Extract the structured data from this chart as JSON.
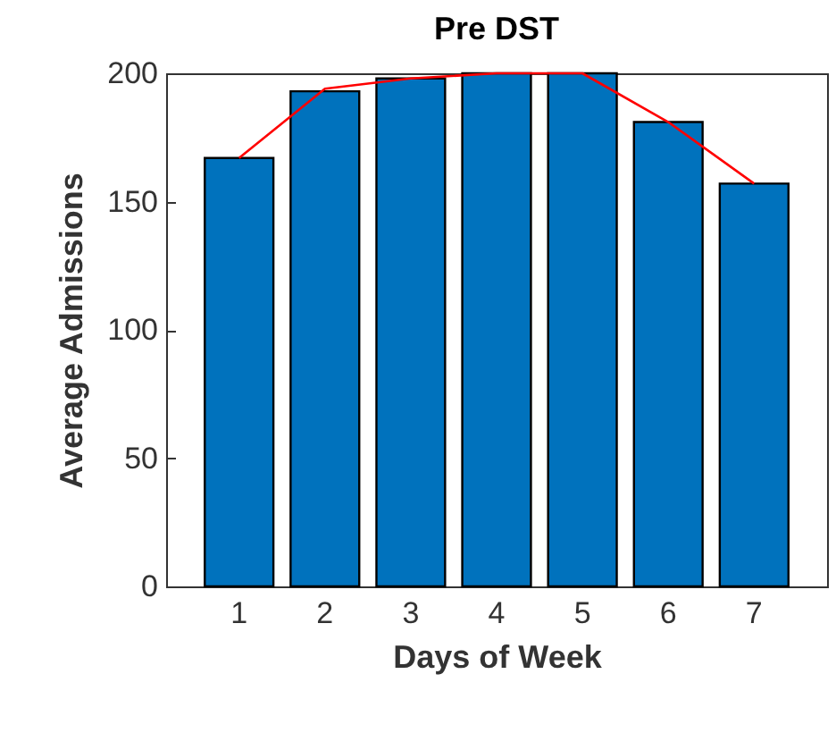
{
  "chart_data": {
    "type": "bar",
    "title": "Pre DST",
    "xlabel": "Days of Week",
    "ylabel": "Average Admissions",
    "categories": [
      "1",
      "2",
      "3",
      "4",
      "5",
      "6",
      "7"
    ],
    "series": [
      {
        "color": "#0072bd",
        "values": [
          167,
          193,
          198,
          200,
          200,
          181,
          157
        ]
      },
      {
        "type": "line",
        "color": "#ff0000",
        "values": [
          167,
          194,
          198,
          200,
          200,
          181,
          157
        ]
      }
    ],
    "ylim": [
      0,
      200
    ],
    "yticks": [
      0,
      50,
      100,
      150,
      200
    ],
    "grid": false
  }
}
